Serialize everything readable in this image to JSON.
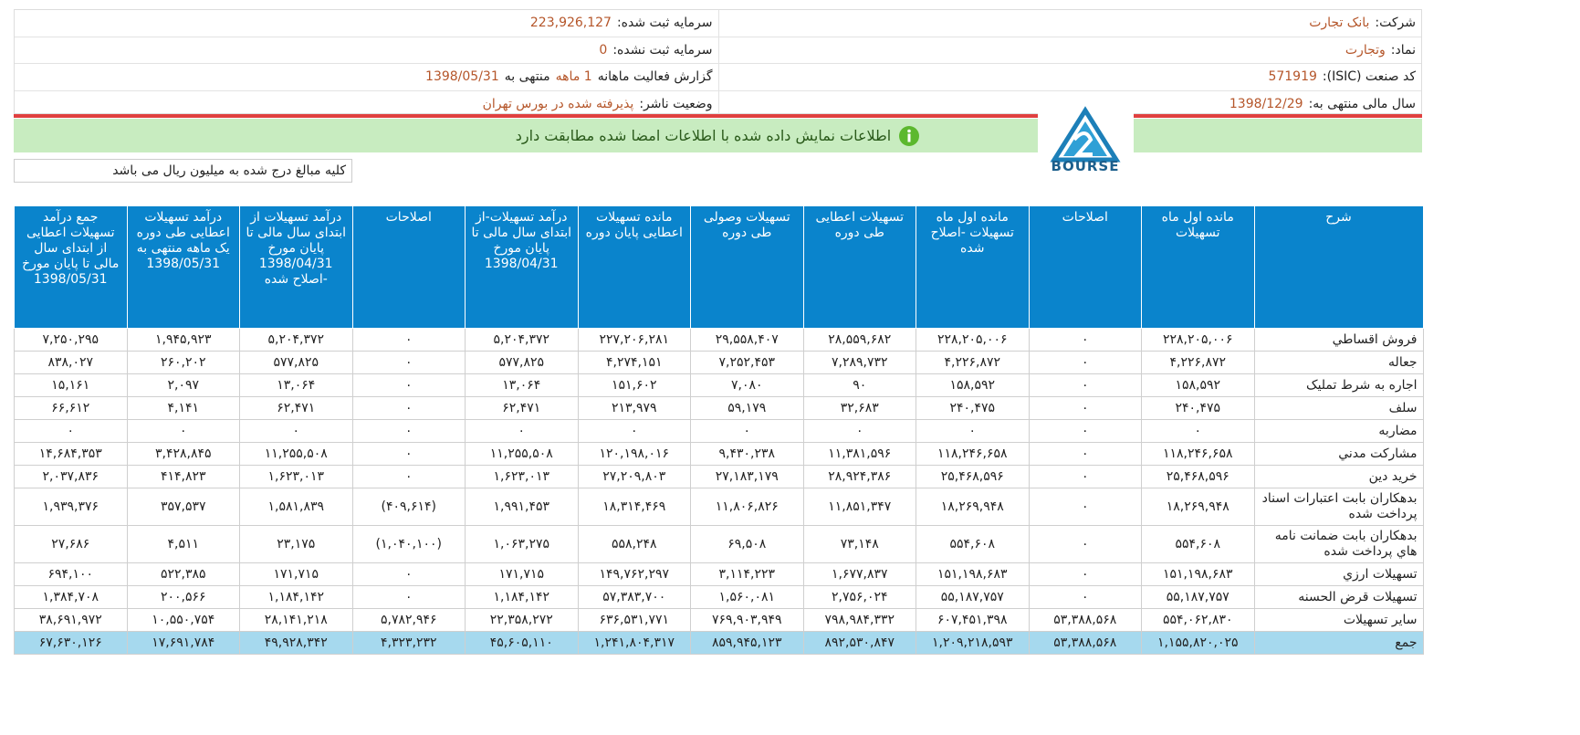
{
  "header": {
    "company": {
      "label": "شرکت:",
      "value": "بانک تجارت"
    },
    "symbol": {
      "label": "نماد:",
      "value": "وتجارت"
    },
    "isic": {
      "label": "کد صنعت (ISIC):",
      "value": "571919"
    },
    "fiscal_year": {
      "label": "سال مالی منتهی به:",
      "value": "1398/12/29"
    },
    "registered_capital": {
      "label": "سرمایه ثبت شده:",
      "value": "223,926,127"
    },
    "unregistered_capital": {
      "label": "سرمایه ثبت نشده:",
      "value": "0"
    },
    "report": {
      "label": "گزارش فعالیت ماهانه",
      "period": "1 ماهه",
      "ending": "منتهی به",
      "date": "1398/05/31"
    },
    "status": {
      "label": "وضعیت ناشر:",
      "value": "پذیرفته شده در بورس تهران"
    }
  },
  "notice": "اطلاعات نمایش داده شده با اطلاعات امضا شده مطابقت دارد",
  "unit_note": "کلیه مبالغ درج شده به میلیون ریال می باشد",
  "logo": {
    "text": "BOURSE"
  },
  "table": {
    "columns": [
      "شرح",
      "مانده اول ماه تسهیلات",
      "اصلاحات",
      "مانده اول ماه تسهیلات -اصلاح شده",
      "تسهیلات اعطایی طی دوره",
      "تسهیلات وصولی طی دوره",
      "مانده تسهیلات اعطایی پایان دوره",
      "درآمد تسهیلات-از ابتدای سال مالی تا پایان مورخ 1398/04/31",
      "اصلاحات",
      "درآمد تسهیلات از ابتدای سال مالی تا پایان مورخ 1398/04/31 -اصلاح شده",
      "درآمد تسهیلات اعطایی طی دوره یک ماهه منتهی به 1398/05/31",
      "جمع درآمد تسهیلات اعطایی از ابتدای سال مالی تا پایان مورخ 1398/05/31"
    ],
    "rows": [
      [
        "فروش اقساطي",
        "۲۲۸,۲۰۵,۰۰۶",
        "۰",
        "۲۲۸,۲۰۵,۰۰۶",
        "۲۸,۵۵۹,۶۸۲",
        "۲۹,۵۵۸,۴۰۷",
        "۲۲۷,۲۰۶,۲۸۱",
        "۵,۲۰۴,۳۷۲",
        "۰",
        "۵,۲۰۴,۳۷۲",
        "۱,۹۴۵,۹۲۳",
        "۷,۲۵۰,۲۹۵"
      ],
      [
        "جعاله",
        "۴,۲۲۶,۸۷۲",
        "۰",
        "۴,۲۲۶,۸۷۲",
        "۷,۲۸۹,۷۳۲",
        "۷,۲۵۲,۴۵۳",
        "۴,۲۷۴,۱۵۱",
        "۵۷۷,۸۲۵",
        "۰",
        "۵۷۷,۸۲۵",
        "۲۶۰,۲۰۲",
        "۸۳۸,۰۲۷"
      ],
      [
        "اجاره به شرط تمليک",
        "۱۵۸,۵۹۲",
        "۰",
        "۱۵۸,۵۹۲",
        "۹۰",
        "۷,۰۸۰",
        "۱۵۱,۶۰۲",
        "۱۳,۰۶۴",
        "۰",
        "۱۳,۰۶۴",
        "۲,۰۹۷",
        "۱۵,۱۶۱"
      ],
      [
        "سلف",
        "۲۴۰,۴۷۵",
        "۰",
        "۲۴۰,۴۷۵",
        "۳۲,۶۸۳",
        "۵۹,۱۷۹",
        "۲۱۳,۹۷۹",
        "۶۲,۴۷۱",
        "۰",
        "۶۲,۴۷۱",
        "۴,۱۴۱",
        "۶۶,۶۱۲"
      ],
      [
        "مضاربه",
        "۰",
        "۰",
        "۰",
        "۰",
        "۰",
        "۰",
        "۰",
        "۰",
        "۰",
        "۰",
        "۰"
      ],
      [
        "مشارکت مدني",
        "۱۱۸,۲۴۶,۶۵۸",
        "۰",
        "۱۱۸,۲۴۶,۶۵۸",
        "۱۱,۳۸۱,۵۹۶",
        "۹,۴۳۰,۲۳۸",
        "۱۲۰,۱۹۸,۰۱۶",
        "۱۱,۲۵۵,۵۰۸",
        "۰",
        "۱۱,۲۵۵,۵۰۸",
        "۳,۴۲۸,۸۴۵",
        "۱۴,۶۸۴,۳۵۳"
      ],
      [
        "خريد دين",
        "۲۵,۴۶۸,۵۹۶",
        "۰",
        "۲۵,۴۶۸,۵۹۶",
        "۲۸,۹۲۴,۳۸۶",
        "۲۷,۱۸۳,۱۷۹",
        "۲۷,۲۰۹,۸۰۳",
        "۱,۶۲۳,۰۱۳",
        "۰",
        "۱,۶۲۳,۰۱۳",
        "۴۱۴,۸۲۳",
        "۲,۰۳۷,۸۳۶"
      ],
      [
        "بدهکاران بابت اعتبارات اسناد پرداخت شده",
        "۱۸,۲۶۹,۹۴۸",
        "۰",
        "۱۸,۲۶۹,۹۴۸",
        "۱۱,۸۵۱,۳۴۷",
        "۱۱,۸۰۶,۸۲۶",
        "۱۸,۳۱۴,۴۶۹",
        "۱,۹۹۱,۴۵۳",
        "(۴۰۹,۶۱۴)",
        "۱,۵۸۱,۸۳۹",
        "۳۵۷,۵۳۷",
        "۱,۹۳۹,۳۷۶"
      ],
      [
        "بدهکاران بابت ضمانت نامه هاي پرداخت شده",
        "۵۵۴,۶۰۸",
        "۰",
        "۵۵۴,۶۰۸",
        "۷۳,۱۴۸",
        "۶۹,۵۰۸",
        "۵۵۸,۲۴۸",
        "۱,۰۶۳,۲۷۵",
        "(۱,۰۴۰,۱۰۰)",
        "۲۳,۱۷۵",
        "۴,۵۱۱",
        "۲۷,۶۸۶"
      ],
      [
        "تسهيلات ارزي",
        "۱۵۱,۱۹۸,۶۸۳",
        "۰",
        "۱۵۱,۱۹۸,۶۸۳",
        "۱,۶۷۷,۸۳۷",
        "۳,۱۱۴,۲۲۳",
        "۱۴۹,۷۶۲,۲۹۷",
        "۱۷۱,۷۱۵",
        "۰",
        "۱۷۱,۷۱۵",
        "۵۲۲,۳۸۵",
        "۶۹۴,۱۰۰"
      ],
      [
        "تسهيلات قرض الحسنه",
        "۵۵,۱۸۷,۷۵۷",
        "۰",
        "۵۵,۱۸۷,۷۵۷",
        "۲,۷۵۶,۰۲۴",
        "۱,۵۶۰,۰۸۱",
        "۵۷,۳۸۳,۷۰۰",
        "۱,۱۸۴,۱۴۲",
        "۰",
        "۱,۱۸۴,۱۴۲",
        "۲۰۰,۵۶۶",
        "۱,۳۸۴,۷۰۸"
      ],
      [
        "ساير تسهيلات",
        "۵۵۴,۰۶۲,۸۳۰",
        "۵۳,۳۸۸,۵۶۸",
        "۶۰۷,۴۵۱,۳۹۸",
        "۷۹۸,۹۸۴,۳۳۲",
        "۷۶۹,۹۰۳,۹۴۹",
        "۶۳۶,۵۳۱,۷۷۱",
        "۲۲,۳۵۸,۲۷۲",
        "۵,۷۸۲,۹۴۶",
        "۲۸,۱۴۱,۲۱۸",
        "۱۰,۵۵۰,۷۵۴",
        "۳۸,۶۹۱,۹۷۲"
      ],
      [
        "جمع",
        "۱,۱۵۵,۸۲۰,۰۲۵",
        "۵۳,۳۸۸,۵۶۸",
        "۱,۲۰۹,۲۱۸,۵۹۳",
        "۸۹۲,۵۳۰,۸۴۷",
        "۸۵۹,۹۴۵,۱۲۳",
        "۱,۲۴۱,۸۰۴,۳۱۷",
        "۴۵,۶۰۵,۱۱۰",
        "۴,۳۲۳,۲۳۲",
        "۴۹,۹۲۸,۳۴۲",
        "۱۷,۶۹۱,۷۸۴",
        "۶۷,۶۳۰,۱۲۶"
      ]
    ]
  }
}
